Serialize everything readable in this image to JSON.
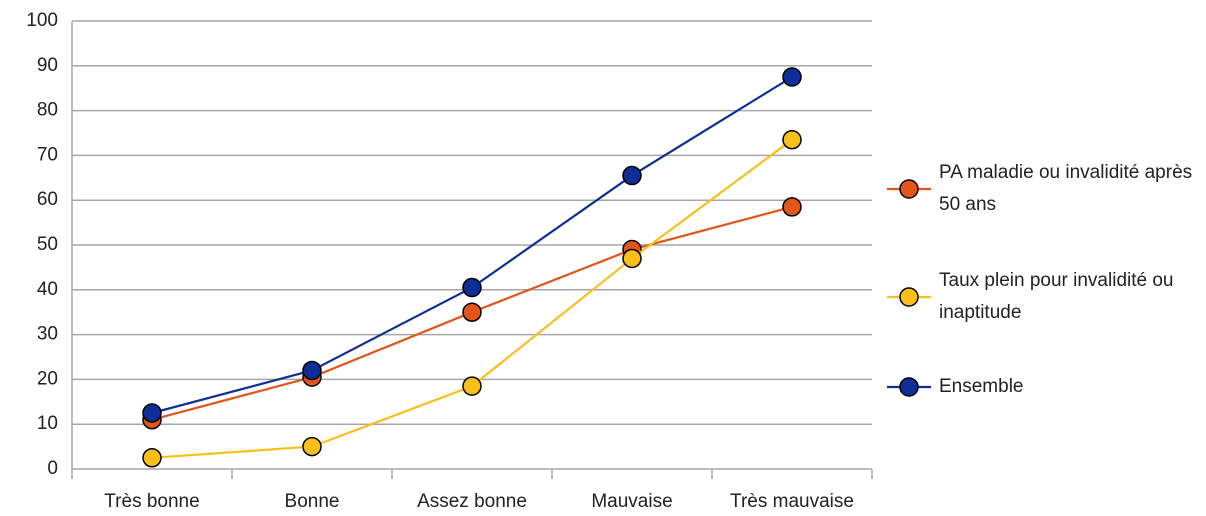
{
  "chart_data": {
    "type": "line",
    "categories": [
      "Très bonne",
      "Bonne",
      "Assez bonne",
      "Mauvaise",
      "Très mauvaise"
    ],
    "series": [
      {
        "name": "PA maladie ou invalidité après 50 ans",
        "color": "#e2561b",
        "values": [
          11,
          20.5,
          35,
          49,
          58.5
        ]
      },
      {
        "name": "Taux plein pour invalidité ou inaptitude",
        "color": "#fbbf1a",
        "values": [
          2.5,
          5,
          18.5,
          47,
          73.5
        ]
      },
      {
        "name": "Ensemble",
        "color": "#0d2e96",
        "values": [
          12.5,
          22,
          40.5,
          65.5,
          87.5
        ]
      }
    ],
    "ylim": [
      0,
      100
    ],
    "yticks": [
      0,
      10,
      20,
      30,
      40,
      50,
      60,
      70,
      80,
      90,
      100
    ],
    "grid": true,
    "legend": "right"
  }
}
